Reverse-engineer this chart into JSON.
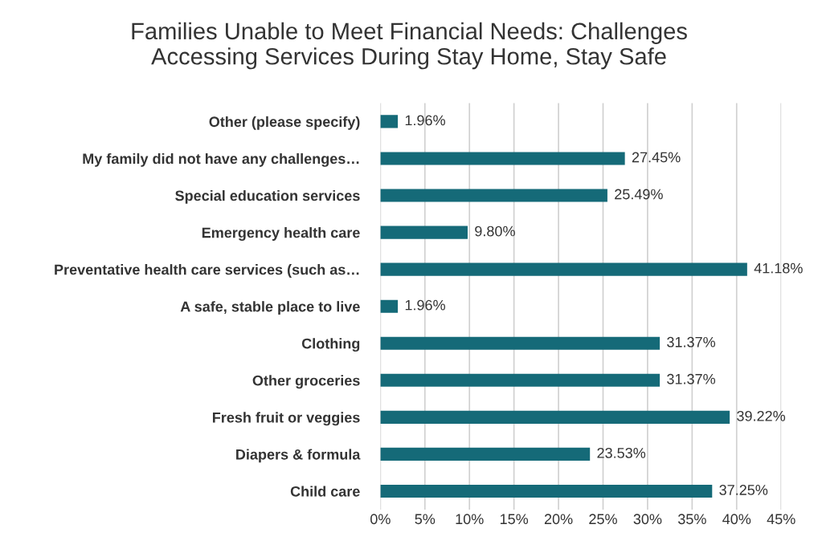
{
  "chart_data": {
    "type": "bar",
    "orientation": "horizontal",
    "title": "Families Unable to Meet Financial Needs: Challenges\nAccessing Services During Stay Home, Stay Safe",
    "categories": [
      "Other (please specify)",
      "My family did not have any challenges…",
      "Special education services",
      "Emergency health care",
      "Preventative health care services (such as…",
      "A safe, stable place to live",
      "Clothing",
      "Other groceries",
      "Fresh fruit or veggies",
      "Diapers & formula",
      "Child care"
    ],
    "values": [
      1.96,
      27.45,
      25.49,
      9.8,
      41.18,
      1.96,
      31.37,
      31.37,
      39.22,
      23.53,
      37.25
    ],
    "value_labels": [
      "1.96%",
      "27.45%",
      "25.49%",
      "9.80%",
      "41.18%",
      "1.96%",
      "31.37%",
      "31.37%",
      "39.22%",
      "23.53%",
      "37.25%"
    ],
    "color": "#156a78",
    "xlim": [
      0,
      45
    ],
    "xticks": [
      {
        "value": 0,
        "label": "0%"
      },
      {
        "value": 5,
        "label": "5%"
      },
      {
        "value": 10,
        "label": "10%"
      },
      {
        "value": 15,
        "label": "15%"
      },
      {
        "value": 20,
        "label": "20%"
      },
      {
        "value": 25,
        "label": "25%"
      },
      {
        "value": 30,
        "label": "30%"
      },
      {
        "value": 35,
        "label": "35%"
      },
      {
        "value": 40,
        "label": "40%"
      },
      {
        "value": 45,
        "label": "45%"
      }
    ],
    "grid": "x"
  }
}
